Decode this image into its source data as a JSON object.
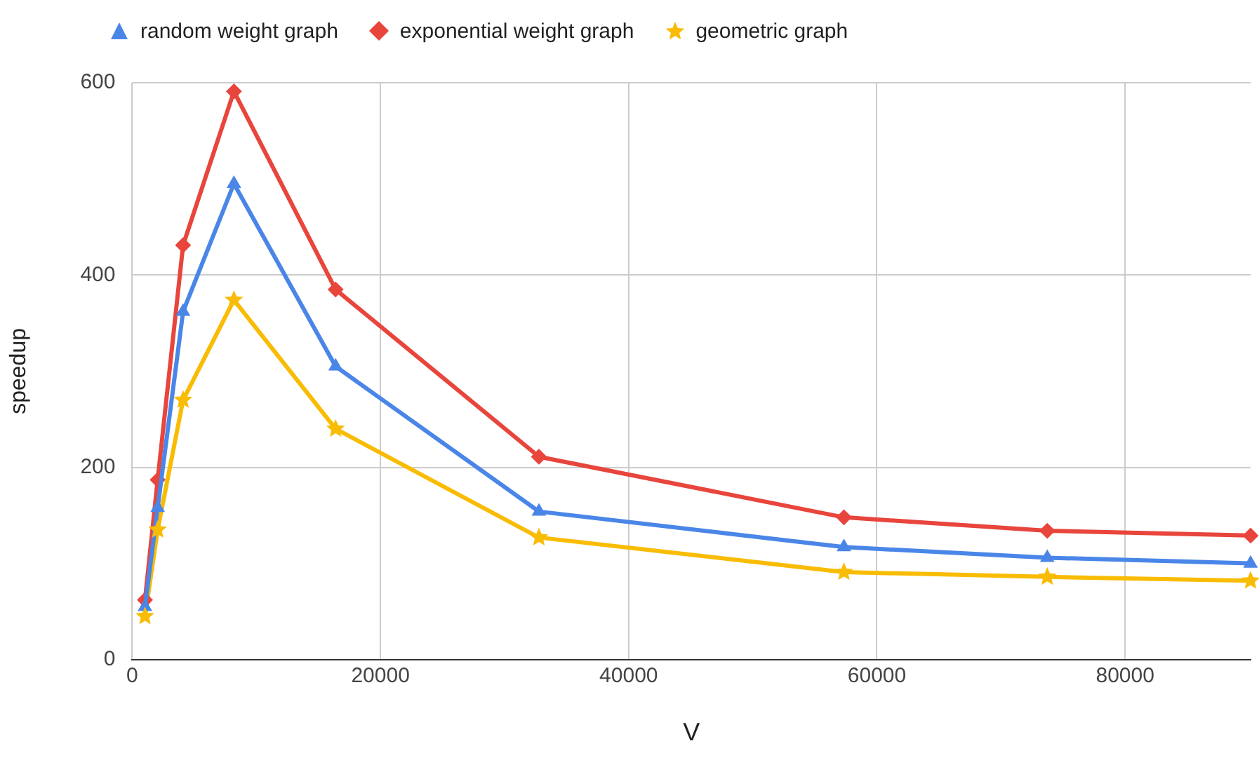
{
  "chart_data": {
    "type": "line",
    "xlabel": "V",
    "ylabel": "speedup",
    "x": [
      1024,
      2048,
      4096,
      8192,
      16384,
      32768,
      57344,
      73728,
      90112
    ],
    "series": [
      {
        "name": "random weight graph",
        "color": "#4a86e8",
        "marker": "triangle",
        "values": [
          55,
          158,
          362,
          495,
          305,
          154,
          117,
          106,
          100
        ]
      },
      {
        "name": "exponential weight graph",
        "color": "#e8453c",
        "marker": "diamond",
        "values": [
          62,
          187,
          431,
          591,
          385,
          211,
          148,
          134,
          129
        ]
      },
      {
        "name": "geometric graph",
        "color": "#f9bc04",
        "marker": "star",
        "values": [
          45,
          135,
          270,
          374,
          240,
          127,
          91,
          86,
          82
        ]
      }
    ],
    "xlim": [
      0,
      90112
    ],
    "xticks": [
      0,
      20000,
      40000,
      60000,
      80000
    ],
    "ylim": [
      0,
      600
    ],
    "yticks": [
      0,
      200,
      400,
      600
    ],
    "grid": true,
    "legend": "top"
  }
}
